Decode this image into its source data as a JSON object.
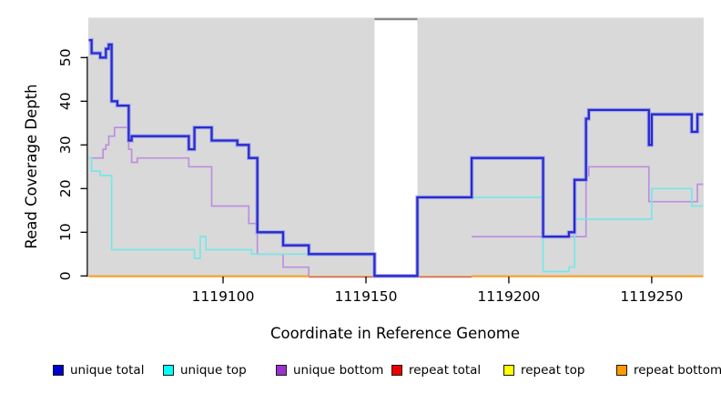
{
  "chart_data": {
    "type": "line",
    "subtype": "step-coverage-plot",
    "title": "",
    "xlabel": "Coordinate in Reference Genome",
    "ylabel": "Read Coverage Depth",
    "x_axis": {
      "ticks": [
        1119100,
        1119150,
        1119200,
        1119250
      ],
      "range": [
        1119053,
        1119268
      ],
      "grid": false
    },
    "y_axis": {
      "ticks": [
        0,
        10,
        20,
        30,
        40,
        50
      ],
      "range": [
        0,
        57
      ],
      "grid": false
    },
    "plot_bg_color": "#d9d9d9",
    "masked_gap": {
      "from": 1119153,
      "to": 1119168,
      "fill": "#ffffff",
      "top_border_color": "#8a8a8a"
    },
    "series": [
      {
        "name": "repeat top",
        "color": "#f2ef3a",
        "legend_color": "#ffff00",
        "hidden_under_baseline": true,
        "points": [
          [
            1119053,
            0
          ],
          [
            1119268,
            0
          ]
        ]
      },
      {
        "name": "repeat total",
        "color": "#d4636f",
        "legend_color": "#ee0000",
        "visible_segments": [
          [
            1119130,
            1119187
          ]
        ],
        "points": [
          [
            1119053,
            0
          ],
          [
            1119268,
            0
          ]
        ]
      },
      {
        "name": "repeat bottom",
        "color": "#ff9d27",
        "legend_color": "#ff9900",
        "visible_segments": [
          [
            1119053,
            1119130
          ],
          [
            1119187,
            1119268
          ]
        ],
        "points": [
          [
            1119053,
            0
          ],
          [
            1119268,
            0
          ]
        ]
      },
      {
        "name": "unique bottom",
        "color": "#bd8fdf",
        "legend_color": "#9933cc",
        "hide_zero_runs": true,
        "points": [
          [
            1119053,
            27
          ],
          [
            1119058,
            29
          ],
          [
            1119059,
            30
          ],
          [
            1119060,
            32
          ],
          [
            1119062,
            34
          ],
          [
            1119067,
            29
          ],
          [
            1119068,
            26
          ],
          [
            1119070,
            27
          ],
          [
            1119088,
            25
          ],
          [
            1119096,
            16
          ],
          [
            1119109,
            12
          ],
          [
            1119112,
            5
          ],
          [
            1119121,
            2
          ],
          [
            1119130,
            0
          ],
          [
            1119187,
            9
          ],
          [
            1119227,
            23
          ],
          [
            1119228,
            25
          ],
          [
            1119249,
            17
          ],
          [
            1119266,
            21
          ],
          [
            1119268,
            21
          ]
        ]
      },
      {
        "name": "unique top",
        "color": "#79e6e8",
        "legend_color": "#00ffff",
        "points": [
          [
            1119053,
            27
          ],
          [
            1119054,
            24
          ],
          [
            1119057,
            23
          ],
          [
            1119061,
            6
          ],
          [
            1119090,
            4
          ],
          [
            1119092,
            9
          ],
          [
            1119094,
            6
          ],
          [
            1119110,
            5
          ],
          [
            1119153,
            0
          ],
          [
            1119168,
            18
          ],
          [
            1119212,
            1
          ],
          [
            1119221,
            2
          ],
          [
            1119223,
            13
          ],
          [
            1119250,
            20
          ],
          [
            1119264,
            16
          ],
          [
            1119268,
            16
          ]
        ]
      },
      {
        "name": "unique total",
        "color": "#2a2acd",
        "halo_color": "#9ba3ec",
        "legend_color": "#0000cc",
        "points": [
          [
            1119053,
            54
          ],
          [
            1119054,
            51
          ],
          [
            1119057,
            50
          ],
          [
            1119059,
            52
          ],
          [
            1119060,
            53
          ],
          [
            1119061,
            40
          ],
          [
            1119063,
            39
          ],
          [
            1119067,
            31
          ],
          [
            1119068,
            32
          ],
          [
            1119088,
            29
          ],
          [
            1119090,
            34
          ],
          [
            1119096,
            31
          ],
          [
            1119105,
            30
          ],
          [
            1119109,
            27
          ],
          [
            1119112,
            10
          ],
          [
            1119121,
            7
          ],
          [
            1119130,
            5
          ],
          [
            1119153,
            0
          ],
          [
            1119168,
            18
          ],
          [
            1119187,
            27
          ],
          [
            1119212,
            9
          ],
          [
            1119221,
            10
          ],
          [
            1119223,
            22
          ],
          [
            1119227,
            36
          ],
          [
            1119228,
            38
          ],
          [
            1119249,
            30
          ],
          [
            1119250,
            37
          ],
          [
            1119264,
            33
          ],
          [
            1119266,
            37
          ],
          [
            1119268,
            37
          ]
        ]
      }
    ],
    "legend": {
      "position": "bottom",
      "items": [
        {
          "label": "unique total",
          "color": "#0000cc"
        },
        {
          "label": "unique top",
          "color": "#00ffff"
        },
        {
          "label": "unique bottom",
          "color": "#9933cc"
        },
        {
          "label": "repeat total",
          "color": "#ee0000"
        },
        {
          "label": "repeat top",
          "color": "#ffff00"
        },
        {
          "label": "repeat bottom",
          "color": "#ff9900"
        }
      ]
    }
  }
}
